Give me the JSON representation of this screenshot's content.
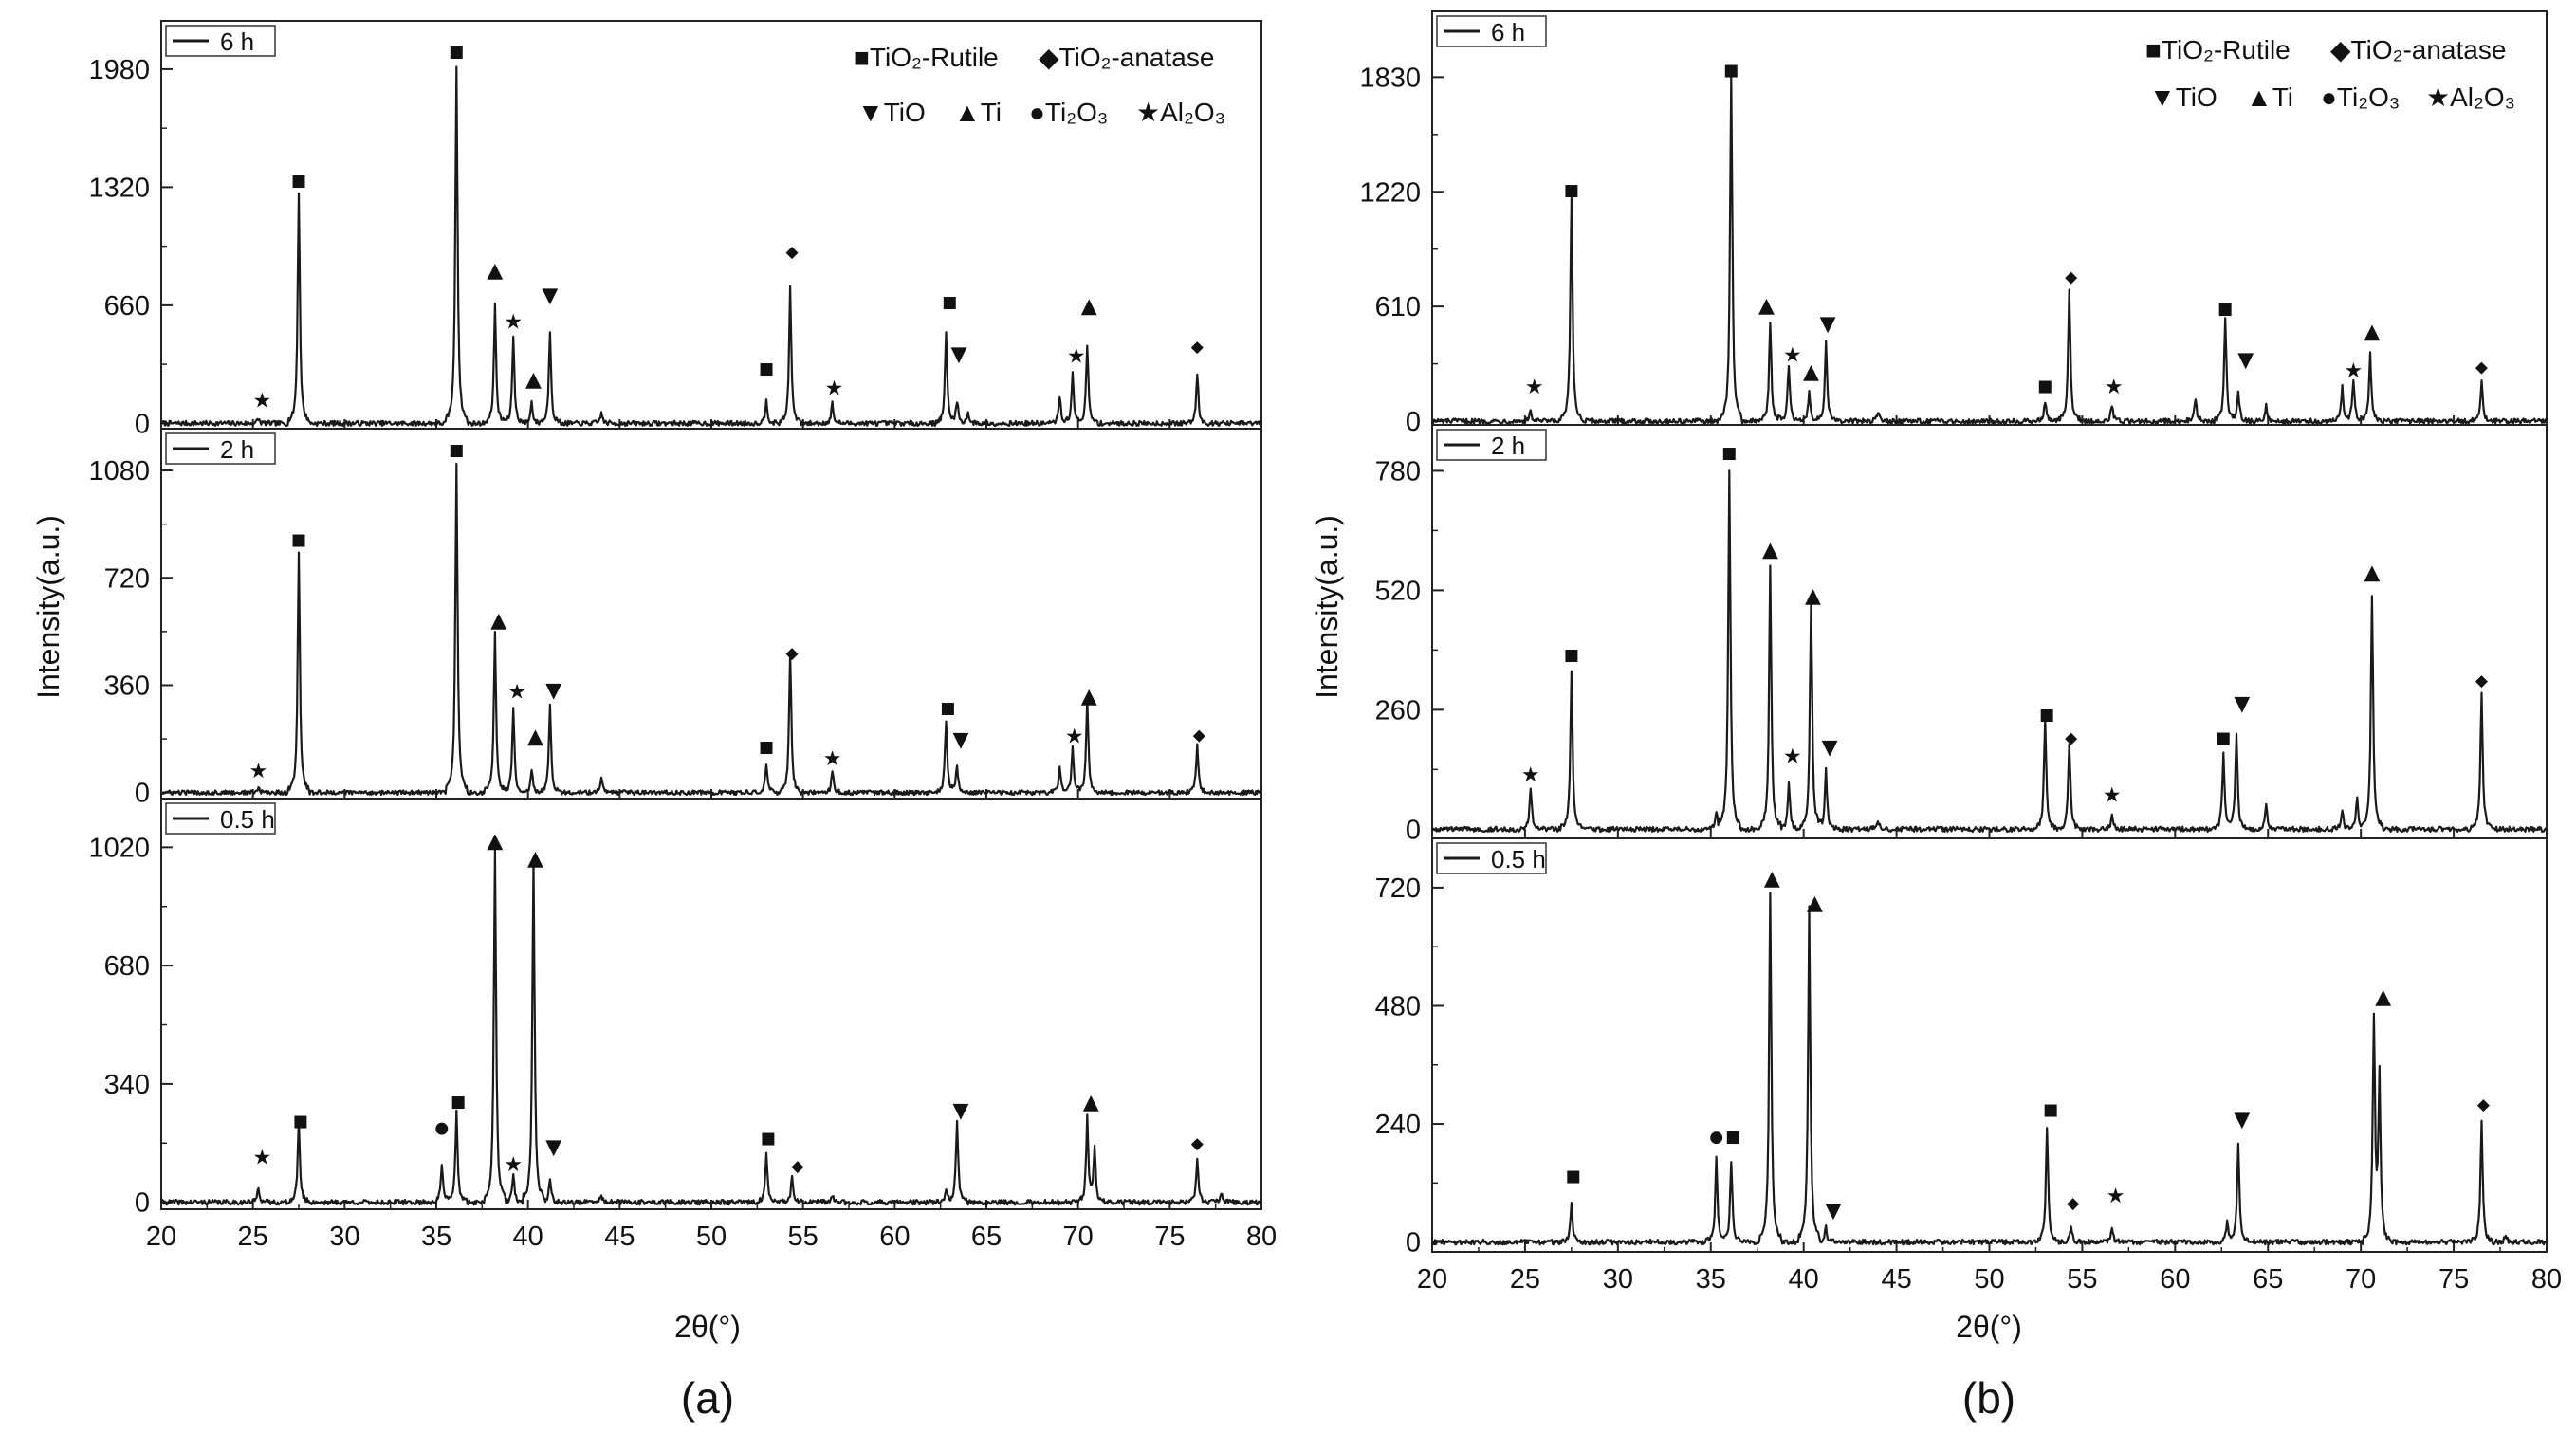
{
  "figure": {
    "captions": [
      "(a)",
      "(b)"
    ]
  },
  "legend": {
    "row1": [
      "■TiO₂-Rutile",
      "◆TiO₂-anatase"
    ],
    "row2": [
      "▼TiO",
      "▲Ti",
      "●Ti₂O₃",
      "★Al₂O₃"
    ]
  },
  "colors": {
    "line": "#1a1a1a",
    "frame": "#222222",
    "background": "#ffffff"
  },
  "chart_data": [
    {
      "type": "line",
      "id": "a",
      "caption": "(a)",
      "xlabel": "2θ(°)",
      "ylabel": "Intensity(a.u.)",
      "xlim": [
        20,
        80
      ],
      "xticks": [
        20,
        25,
        30,
        35,
        40,
        45,
        50,
        55,
        60,
        65,
        70,
        75,
        80
      ],
      "panels": [
        {
          "label": "6 h",
          "ylim": [
            -30,
            2250
          ],
          "yticks": [
            0,
            660,
            1320,
            1980
          ],
          "peaks": [
            [
              25.3,
              25
            ],
            [
              27.5,
              1280
            ],
            [
              36.1,
              2000
            ],
            [
              38.2,
              660
            ],
            [
              39.2,
              480
            ],
            [
              40.2,
              120
            ],
            [
              41.2,
              520
            ],
            [
              44.0,
              60
            ],
            [
              53.0,
              130
            ],
            [
              54.3,
              760
            ],
            [
              56.6,
              110
            ],
            [
              62.8,
              500
            ],
            [
              63.4,
              130
            ],
            [
              64.0,
              60
            ],
            [
              69.0,
              150
            ],
            [
              69.7,
              280
            ],
            [
              70.5,
              440
            ],
            [
              76.5,
              280
            ]
          ],
          "markers": [
            {
              "sym": "★",
              "x": 25.5,
              "y": 130
            },
            {
              "sym": "■",
              "x": 27.5,
              "y": 1360
            },
            {
              "sym": "■",
              "x": 36.1,
              "y": 2080
            },
            {
              "sym": "▲",
              "x": 38.2,
              "y": 860
            },
            {
              "sym": "★",
              "x": 39.2,
              "y": 570
            },
            {
              "sym": "▲",
              "x": 40.3,
              "y": 250
            },
            {
              "sym": "▼",
              "x": 41.2,
              "y": 720
            },
            {
              "sym": "■",
              "x": 53.0,
              "y": 310
            },
            {
              "sym": "◆",
              "x": 54.4,
              "y": 960
            },
            {
              "sym": "★",
              "x": 56.7,
              "y": 200
            },
            {
              "sym": "■",
              "x": 63.0,
              "y": 680
            },
            {
              "sym": "▼",
              "x": 63.5,
              "y": 390
            },
            {
              "sym": "★",
              "x": 69.9,
              "y": 380
            },
            {
              "sym": "▲",
              "x": 70.6,
              "y": 660
            },
            {
              "sym": "◆",
              "x": 76.5,
              "y": 430
            }
          ]
        },
        {
          "label": "2 h",
          "ylim": [
            -20,
            1220
          ],
          "yticks": [
            0,
            360,
            720,
            1080
          ],
          "peaks": [
            [
              25.3,
              15
            ],
            [
              27.5,
              800
            ],
            [
              36.1,
              1110
            ],
            [
              38.2,
              540
            ],
            [
              39.2,
              290
            ],
            [
              40.2,
              80
            ],
            [
              41.2,
              300
            ],
            [
              44.0,
              50
            ],
            [
              53.0,
              100
            ],
            [
              54.3,
              470
            ],
            [
              56.6,
              70
            ],
            [
              62.8,
              240
            ],
            [
              63.4,
              90
            ],
            [
              69.0,
              80
            ],
            [
              69.7,
              150
            ],
            [
              70.5,
              320
            ],
            [
              76.5,
              160
            ]
          ],
          "markers": [
            {
              "sym": "★",
              "x": 25.3,
              "y": 75
            },
            {
              "sym": "■",
              "x": 27.5,
              "y": 850
            },
            {
              "sym": "■",
              "x": 36.1,
              "y": 1150
            },
            {
              "sym": "▲",
              "x": 38.4,
              "y": 580
            },
            {
              "sym": "★",
              "x": 39.4,
              "y": 340
            },
            {
              "sym": "▲",
              "x": 40.4,
              "y": 190
            },
            {
              "sym": "▼",
              "x": 41.4,
              "y": 345
            },
            {
              "sym": "■",
              "x": 53.0,
              "y": 155
            },
            {
              "sym": "◆",
              "x": 54.4,
              "y": 470
            },
            {
              "sym": "★",
              "x": 56.6,
              "y": 115
            },
            {
              "sym": "■",
              "x": 62.9,
              "y": 285
            },
            {
              "sym": "▼",
              "x": 63.6,
              "y": 180
            },
            {
              "sym": "★",
              "x": 69.8,
              "y": 190
            },
            {
              "sym": "▲",
              "x": 70.6,
              "y": 325
            },
            {
              "sym": "◆",
              "x": 76.6,
              "y": 195
            }
          ]
        },
        {
          "label": "0.5 h",
          "ylim": [
            -20,
            1160
          ],
          "yticks": [
            0,
            340,
            680,
            1020
          ],
          "peaks": [
            [
              25.3,
              45
            ],
            [
              27.5,
              230
            ],
            [
              35.3,
              110
            ],
            [
              36.1,
              260
            ],
            [
              38.2,
              1020
            ],
            [
              39.2,
              80
            ],
            [
              40.3,
              990
            ],
            [
              41.2,
              70
            ],
            [
              44.0,
              20
            ],
            [
              53.0,
              140
            ],
            [
              54.4,
              70
            ],
            [
              56.6,
              20
            ],
            [
              62.8,
              30
            ],
            [
              63.4,
              240
            ],
            [
              70.5,
              240
            ],
            [
              70.9,
              150
            ],
            [
              76.5,
              130
            ],
            [
              77.8,
              30
            ]
          ],
          "markers": [
            {
              "sym": "★",
              "x": 25.5,
              "y": 130
            },
            {
              "sym": "■",
              "x": 27.6,
              "y": 235
            },
            {
              "sym": "●",
              "x": 35.3,
              "y": 215
            },
            {
              "sym": "■",
              "x": 36.2,
              "y": 290
            },
            {
              "sym": "▲",
              "x": 38.2,
              "y": 1040
            },
            {
              "sym": "★",
              "x": 39.2,
              "y": 110
            },
            {
              "sym": "▲",
              "x": 40.4,
              "y": 990
            },
            {
              "sym": "▼",
              "x": 41.4,
              "y": 160
            },
            {
              "sym": "■",
              "x": 53.1,
              "y": 185
            },
            {
              "sym": "◆",
              "x": 54.7,
              "y": 105
            },
            {
              "sym": "▼",
              "x": 63.6,
              "y": 265
            },
            {
              "sym": "▲",
              "x": 70.7,
              "y": 290
            },
            {
              "sym": "◆",
              "x": 76.5,
              "y": 170
            }
          ]
        }
      ]
    },
    {
      "type": "line",
      "id": "b",
      "caption": "(b)",
      "xlabel": "2θ(°)",
      "ylabel": "Intensity(a.u.)",
      "xlim": [
        20,
        80
      ],
      "xticks": [
        20,
        25,
        30,
        35,
        40,
        45,
        50,
        55,
        60,
        65,
        70,
        75,
        80
      ],
      "panels": [
        {
          "label": "6 h",
          "ylim": [
            -20,
            2180
          ],
          "yticks": [
            0,
            610,
            1220,
            1830
          ],
          "peaks": [
            [
              25.3,
              50
            ],
            [
              27.5,
              1180
            ],
            [
              36.1,
              1830
            ],
            [
              38.2,
              530
            ],
            [
              39.2,
              300
            ],
            [
              40.3,
              160
            ],
            [
              41.2,
              420
            ],
            [
              44.0,
              50
            ],
            [
              53.0,
              110
            ],
            [
              54.3,
              700
            ],
            [
              56.6,
              90
            ],
            [
              61.1,
              120
            ],
            [
              62.7,
              560
            ],
            [
              63.4,
              160
            ],
            [
              64.9,
              80
            ],
            [
              69.0,
              180
            ],
            [
              69.6,
              230
            ],
            [
              70.5,
              360
            ],
            [
              76.5,
              210
            ]
          ],
          "markers": [
            {
              "sym": "★",
              "x": 25.5,
              "y": 185
            },
            {
              "sym": "■",
              "x": 27.5,
              "y": 1230
            },
            {
              "sym": "■",
              "x": 36.1,
              "y": 1870
            },
            {
              "sym": "▲",
              "x": 38.0,
              "y": 620
            },
            {
              "sym": "★",
              "x": 39.4,
              "y": 355
            },
            {
              "sym": "▲",
              "x": 40.4,
              "y": 265
            },
            {
              "sym": "▼",
              "x": 41.3,
              "y": 520
            },
            {
              "sym": "■",
              "x": 53.0,
              "y": 190
            },
            {
              "sym": "◆",
              "x": 54.4,
              "y": 770
            },
            {
              "sym": "★",
              "x": 56.7,
              "y": 185
            },
            {
              "sym": "■",
              "x": 62.7,
              "y": 600
            },
            {
              "sym": "▼",
              "x": 63.8,
              "y": 330
            },
            {
              "sym": "★",
              "x": 69.6,
              "y": 270
            },
            {
              "sym": "▲",
              "x": 70.6,
              "y": 480
            },
            {
              "sym": "◆",
              "x": 76.5,
              "y": 290
            }
          ]
        },
        {
          "label": "2 h",
          "ylim": [
            -20,
            880
          ],
          "yticks": [
            0,
            260,
            520,
            780
          ],
          "peaks": [
            [
              25.3,
              90
            ],
            [
              27.5,
              340
            ],
            [
              35.3,
              40
            ],
            [
              36.0,
              780
            ],
            [
              38.2,
              570
            ],
            [
              39.2,
              100
            ],
            [
              40.4,
              500
            ],
            [
              41.2,
              130
            ],
            [
              44.0,
              20
            ],
            [
              53.0,
              240
            ],
            [
              54.3,
              190
            ],
            [
              56.6,
              30
            ],
            [
              62.6,
              170
            ],
            [
              63.3,
              210
            ],
            [
              64.9,
              50
            ],
            [
              69.0,
              40
            ],
            [
              69.8,
              70
            ],
            [
              70.6,
              510
            ],
            [
              76.5,
              300
            ]
          ],
          "markers": [
            {
              "sym": "★",
              "x": 25.3,
              "y": 120
            },
            {
              "sym": "■",
              "x": 27.5,
              "y": 380
            },
            {
              "sym": "■",
              "x": 36.0,
              "y": 820
            },
            {
              "sym": "▲",
              "x": 38.2,
              "y": 610
            },
            {
              "sym": "★",
              "x": 39.4,
              "y": 160
            },
            {
              "sym": "▲",
              "x": 40.5,
              "y": 510
            },
            {
              "sym": "▼",
              "x": 41.4,
              "y": 180
            },
            {
              "sym": "■",
              "x": 53.1,
              "y": 250
            },
            {
              "sym": "◆",
              "x": 54.4,
              "y": 200
            },
            {
              "sym": "★",
              "x": 56.6,
              "y": 75
            },
            {
              "sym": "■",
              "x": 62.6,
              "y": 200
            },
            {
              "sym": "▼",
              "x": 63.6,
              "y": 275
            },
            {
              "sym": "▲",
              "x": 70.6,
              "y": 560
            },
            {
              "sym": "◆",
              "x": 76.5,
              "y": 325
            }
          ]
        },
        {
          "label": "0.5 h",
          "ylim": [
            -20,
            820
          ],
          "yticks": [
            0,
            240,
            480,
            720
          ],
          "peaks": [
            [
              27.5,
              75
            ],
            [
              35.3,
              170
            ],
            [
              36.1,
              165
            ],
            [
              38.2,
              710
            ],
            [
              40.3,
              680
            ],
            [
              41.2,
              30
            ],
            [
              53.1,
              235
            ],
            [
              54.4,
              30
            ],
            [
              56.6,
              30
            ],
            [
              62.8,
              40
            ],
            [
              63.4,
              200
            ],
            [
              70.7,
              450
            ],
            [
              71.0,
              330
            ],
            [
              76.5,
              245
            ],
            [
              77.8,
              15
            ]
          ],
          "markers": [
            {
              "sym": "■",
              "x": 27.6,
              "y": 135
            },
            {
              "sym": "●",
              "x": 35.3,
              "y": 215
            },
            {
              "sym": "■",
              "x": 36.2,
              "y": 215
            },
            {
              "sym": "▲",
              "x": 38.3,
              "y": 740
            },
            {
              "sym": "▲",
              "x": 40.6,
              "y": 690
            },
            {
              "sym": "▼",
              "x": 41.6,
              "y": 65
            },
            {
              "sym": "■",
              "x": 53.3,
              "y": 270
            },
            {
              "sym": "◆",
              "x": 54.5,
              "y": 80
            },
            {
              "sym": "★",
              "x": 56.8,
              "y": 95
            },
            {
              "sym": "▼",
              "x": 63.6,
              "y": 250
            },
            {
              "sym": "▲",
              "x": 71.2,
              "y": 500
            },
            {
              "sym": "◆",
              "x": 76.6,
              "y": 280
            }
          ]
        }
      ]
    }
  ]
}
